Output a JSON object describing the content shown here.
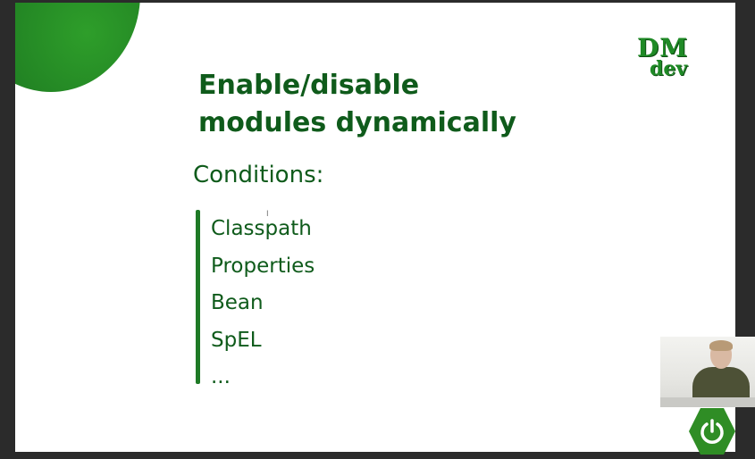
{
  "logo": {
    "line1": "DM",
    "line2": "dev"
  },
  "slide": {
    "title_line1": "Enable/disable",
    "title_line2": "modules dynamically",
    "subtitle": "Conditions:",
    "conditions": [
      "Classpath",
      "Properties",
      "Bean",
      "SpEL",
      "..."
    ]
  },
  "colors": {
    "primary_green": "#0f5b1b",
    "accent_green": "#1e7a26",
    "background": "#ffffff"
  },
  "icons": [
    "text-cursor-icon",
    "power-icon"
  ]
}
